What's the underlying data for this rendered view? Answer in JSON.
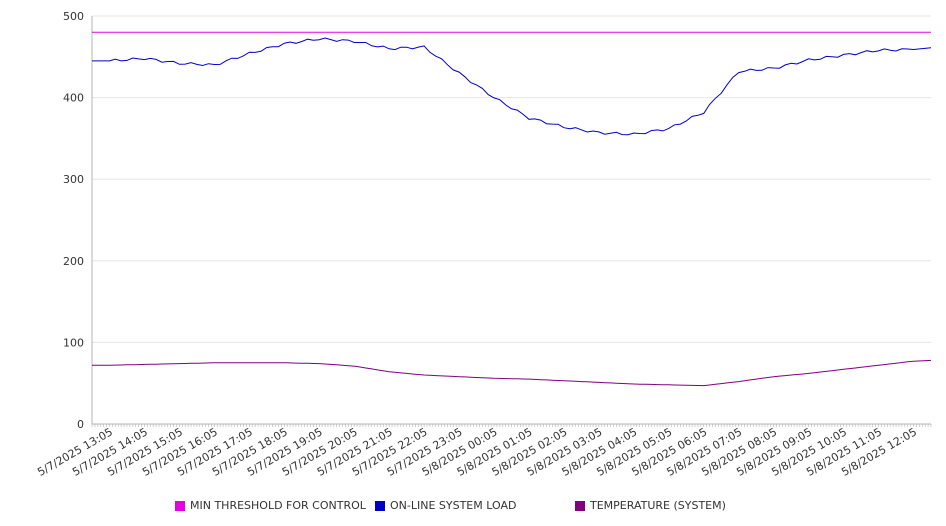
{
  "chart_data": {
    "type": "line",
    "ylim": [
      0,
      500
    ],
    "y_ticks": [
      0,
      100,
      200,
      300,
      400,
      500
    ],
    "grid": true,
    "legend_position": "bottom",
    "x_labels": [
      "5/7/2025 13:05",
      "5/7/2025 14:05",
      "5/7/2025 15:05",
      "5/7/2025 16:05",
      "5/7/2025 17:05",
      "5/7/2025 18:05",
      "5/7/2025 19:05",
      "5/7/2025 20:05",
      "5/7/2025 21:05",
      "5/7/2025 22:05",
      "5/7/2025 23:05",
      "5/8/2025 00:05",
      "5/8/2025 01:05",
      "5/8/2025 02:05",
      "5/8/2025 03:05",
      "5/8/2025 04:05",
      "5/8/2025 05:05",
      "5/8/2025 06:05",
      "5/8/2025 07:05",
      "5/8/2025 08:05",
      "5/8/2025 09:05",
      "5/8/2025 10:05",
      "5/8/2025 11:05",
      "5/8/2025 12:05"
    ],
    "series": [
      {
        "name": "MIN THRESHOLD FOR CONTROL",
        "color": "#e600e6",
        "values": [
          480,
          480,
          480,
          480,
          480,
          480,
          480,
          480,
          480,
          480,
          480,
          480,
          480,
          480,
          480,
          480,
          480,
          480,
          480,
          480,
          480,
          480,
          480,
          480
        ]
      },
      {
        "name": "ON-LINE SYSTEM LOAD",
        "color": "#0000cc",
        "values": [
          445,
          448,
          442,
          440,
          454,
          466,
          472,
          469,
          460,
          462,
          430,
          400,
          375,
          364,
          357,
          355,
          362,
          382,
          432,
          436,
          446,
          452,
          458,
          459
        ]
      },
      {
        "name": "TEMPERATURE (SYSTEM)",
        "color": "#800080",
        "values": [
          72,
          73,
          74,
          75,
          75,
          75,
          74,
          71,
          64,
          60,
          58,
          56,
          55,
          53,
          51,
          49,
          48,
          47,
          52,
          58,
          62,
          67,
          72,
          77
        ]
      }
    ]
  }
}
